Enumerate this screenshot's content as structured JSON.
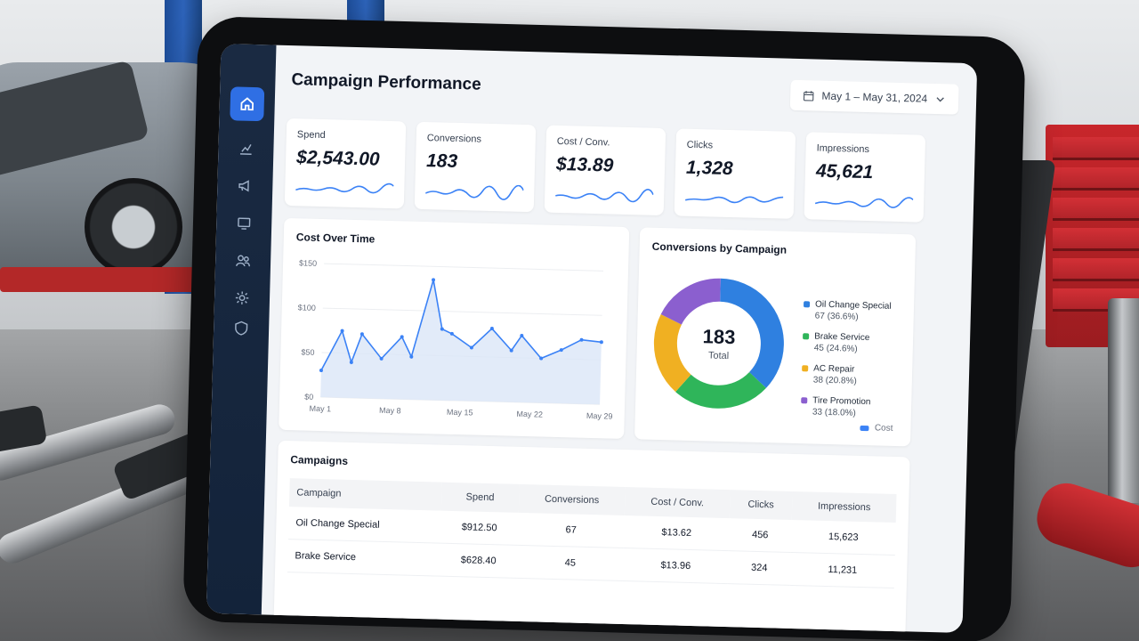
{
  "app": {
    "title": "Campaign Performance",
    "date_range": "May 1 – May 31, 2024"
  },
  "sidebar": {
    "items": [
      {
        "icon": "home-icon",
        "active": true
      },
      {
        "icon": "chart-icon",
        "active": false
      },
      {
        "icon": "megaphone-icon",
        "active": false
      },
      {
        "icon": "monitor-icon",
        "active": false
      },
      {
        "icon": "users-icon",
        "active": false
      },
      {
        "icon": "settings-icon",
        "active": false
      },
      {
        "icon": "shield-icon",
        "active": false
      }
    ]
  },
  "kpis": [
    {
      "label": "Spend",
      "value": "$2,543.00"
    },
    {
      "label": "Conversions",
      "value": "183"
    },
    {
      "label": "Cost / Conv.",
      "value": "$13.89"
    },
    {
      "label": "Clicks",
      "value": "1,328"
    },
    {
      "label": "Impressions",
      "value": "45,621"
    }
  ],
  "cost_chart": {
    "title": "Cost Over Time",
    "chart_data": {
      "type": "area",
      "x_ticks": [
        "May 1",
        "May 8",
        "May 15",
        "May 22",
        "May 29"
      ],
      "y_ticks": [
        "$0",
        "$50",
        "$100",
        "$150"
      ],
      "ylim": [
        0,
        150
      ],
      "x": [
        1,
        3,
        4,
        5,
        7,
        9,
        10,
        12,
        13,
        14,
        16,
        18,
        20,
        21,
        23,
        25,
        27,
        29
      ],
      "values": [
        30,
        75,
        40,
        72,
        45,
        70,
        48,
        135,
        80,
        75,
        60,
        82,
        58,
        75,
        50,
        60,
        72,
        70
      ]
    }
  },
  "conversions": {
    "title": "Conversions by Campaign",
    "total": "183",
    "total_label": "Total",
    "items": [
      {
        "name": "Oil Change Special",
        "value": "67 (36.6%)",
        "count": 67,
        "color": "#2f80e0"
      },
      {
        "name": "Brake Service",
        "value": "45 (24.6%)",
        "count": 45,
        "color": "#2fb55a"
      },
      {
        "name": "AC Repair",
        "value": "38 (20.8%)",
        "count": 38,
        "color": "#f0b022"
      },
      {
        "name": "Tire Promotion",
        "value": "33 (18.0%)",
        "count": 33,
        "color": "#8b5fcf"
      }
    ],
    "cost_legend": "Cost"
  },
  "table": {
    "title": "Campaigns",
    "columns": [
      "Campaign",
      "Spend",
      "Conversions",
      "Cost / Conv.",
      "Clicks",
      "Impressions"
    ],
    "rows": [
      [
        "Oil Change Special",
        "$912.50",
        "67",
        "$13.62",
        "456",
        "15,623"
      ],
      [
        "Brake Service",
        "$628.40",
        "45",
        "$13.96",
        "324",
        "11,231"
      ]
    ]
  }
}
